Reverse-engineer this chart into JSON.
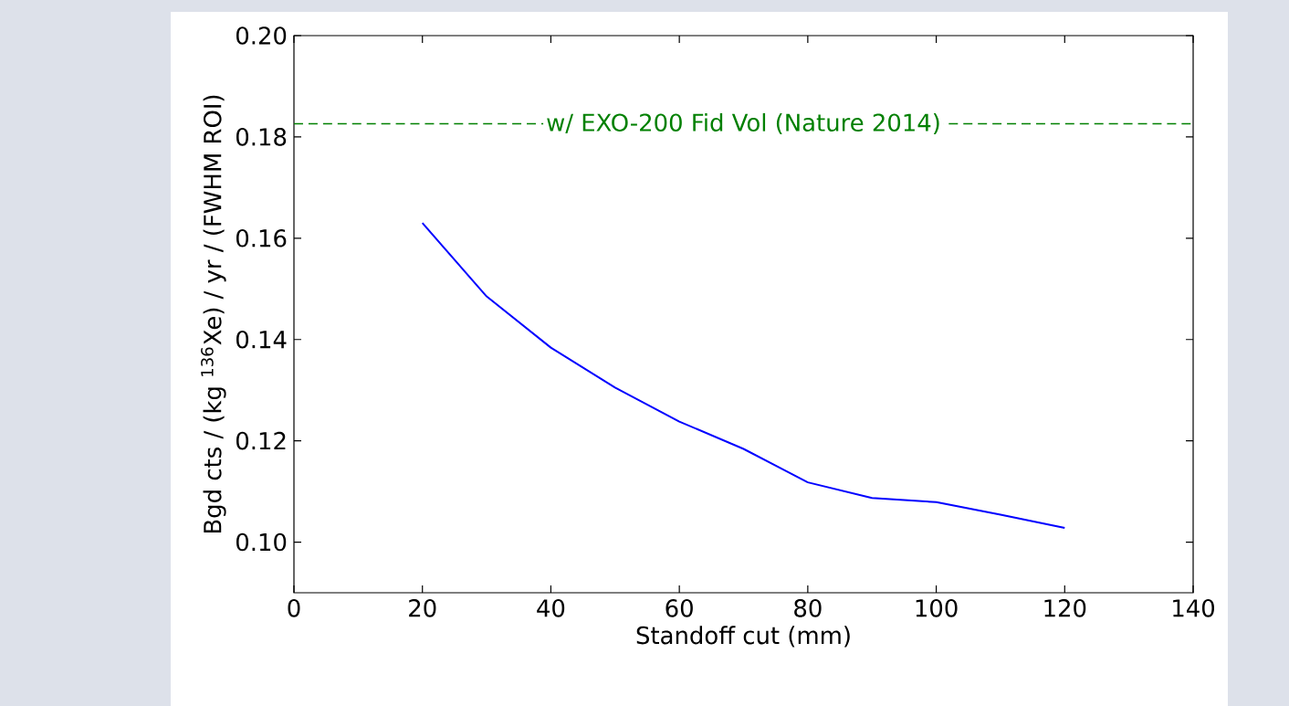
{
  "chart_data": {
    "type": "line",
    "xlabel": "Standoff cut (mm)",
    "ylabel": "Bgd cts / (kg $^{136}$Xe) / yr / (FWHM ROI)",
    "x": [
      20,
      30,
      40,
      50,
      60,
      70,
      80,
      90,
      100,
      110,
      120
    ],
    "series": [
      {
        "color": "#0000ff",
        "values": [
          0.163,
          0.1485,
          0.1384,
          0.1305,
          0.1238,
          0.1184,
          0.1118,
          0.1087,
          0.1079,
          0.1054,
          0.1028
        ]
      }
    ],
    "xlim": [
      0,
      140
    ],
    "xticks": [
      0,
      20,
      40,
      60,
      80,
      100,
      120,
      140
    ],
    "ylim": [
      0.09,
      0.2
    ],
    "yticks": [
      {
        "value": 0.1,
        "label": "0.10"
      },
      {
        "value": 0.12,
        "label": "0.12"
      },
      {
        "value": 0.14,
        "label": "0.14"
      },
      {
        "value": 0.16,
        "label": "0.16"
      },
      {
        "value": 0.18,
        "label": "0.18"
      },
      {
        "value": 0.2,
        "label": "0.20"
      }
    ],
    "ref_lines": [
      {
        "axis": "y",
        "value": 0.1826,
        "label": "w/ EXO-200 Fid Vol (Nature 2014)",
        "color": "#008000",
        "line_style": "dashed"
      }
    ],
    "grid": false
  }
}
